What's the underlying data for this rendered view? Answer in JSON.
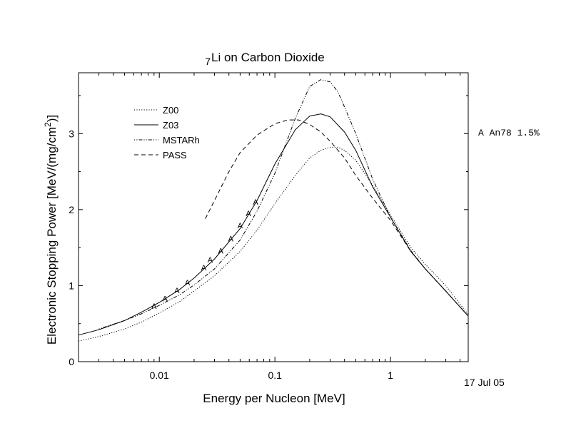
{
  "chart_data": {
    "type": "line",
    "title_sup": "7",
    "title": "Li on Carbon Dioxide",
    "xlabel": "Energy per Nucleon [MeV]",
    "ylabel_main": "Electronic Stopping Power [MeV/(mg/cm",
    "ylabel_sup": "2",
    "ylabel_end": ")]",
    "x_scale": "log",
    "xlim": [
      0.002,
      4.7
    ],
    "ylim": [
      0,
      3.8
    ],
    "x_ticks": [
      {
        "value": 0.01,
        "label": "0.01"
      },
      {
        "value": 0.1,
        "label": "0.1"
      },
      {
        "value": 1,
        "label": "1"
      }
    ],
    "y_ticks": [
      {
        "value": 0,
        "label": "0"
      },
      {
        "value": 1,
        "label": "1"
      },
      {
        "value": 2,
        "label": "2"
      },
      {
        "value": 3,
        "label": "3"
      }
    ],
    "legend_position": "top-left",
    "series": [
      {
        "name": "Z00",
        "style": "dotted",
        "x": [
          0.002,
          0.003,
          0.005,
          0.007,
          0.01,
          0.015,
          0.02,
          0.03,
          0.05,
          0.07,
          0.1,
          0.15,
          0.2,
          0.25,
          0.3,
          0.35,
          0.4,
          0.5,
          0.7,
          1.0,
          1.5,
          2.0,
          3.0,
          4.7
        ],
        "y": [
          0.27,
          0.33,
          0.43,
          0.52,
          0.64,
          0.79,
          0.93,
          1.13,
          1.45,
          1.73,
          2.08,
          2.45,
          2.68,
          2.78,
          2.82,
          2.82,
          2.78,
          2.65,
          2.32,
          1.93,
          1.5,
          1.28,
          1.0,
          0.62
        ]
      },
      {
        "name": "Z03",
        "style": "solid",
        "x": [
          0.002,
          0.003,
          0.005,
          0.007,
          0.01,
          0.015,
          0.02,
          0.03,
          0.05,
          0.07,
          0.1,
          0.15,
          0.2,
          0.25,
          0.3,
          0.4,
          0.5,
          0.7,
          1.0,
          1.5,
          2.0,
          3.0,
          4.7
        ],
        "y": [
          0.35,
          0.42,
          0.54,
          0.65,
          0.78,
          0.95,
          1.1,
          1.35,
          1.75,
          2.12,
          2.6,
          3.05,
          3.23,
          3.26,
          3.22,
          3.02,
          2.78,
          2.3,
          1.9,
          1.45,
          1.22,
          0.93,
          0.6
        ]
      },
      {
        "name": "MSTARh",
        "style": "dash-dot",
        "x": [
          0.003,
          0.005,
          0.007,
          0.01,
          0.015,
          0.02,
          0.03,
          0.05,
          0.07,
          0.1,
          0.15,
          0.2,
          0.25,
          0.3,
          0.35,
          0.4,
          0.5,
          0.7,
          1.0,
          1.5,
          2.0,
          3.0,
          4.7
        ],
        "y": [
          0.43,
          0.54,
          0.63,
          0.74,
          0.88,
          1.01,
          1.22,
          1.6,
          1.98,
          2.48,
          3.2,
          3.62,
          3.71,
          3.68,
          3.55,
          3.35,
          3.0,
          2.4,
          1.9,
          1.46,
          1.22,
          0.93,
          0.6
        ]
      },
      {
        "name": "PASS",
        "style": "dashed",
        "x": [
          0.025,
          0.03,
          0.04,
          0.05,
          0.07,
          0.1,
          0.13,
          0.16,
          0.2,
          0.25,
          0.3,
          0.4,
          0.5,
          0.7,
          1.0,
          1.5,
          2.0,
          3.0,
          4.7
        ],
        "y": [
          1.88,
          2.12,
          2.5,
          2.75,
          2.98,
          3.13,
          3.18,
          3.18,
          3.12,
          3.02,
          2.9,
          2.68,
          2.45,
          2.15,
          1.86,
          1.45,
          1.22,
          0.93,
          0.6
        ]
      }
    ],
    "data_points": {
      "marker": "A",
      "x": [
        0.009,
        0.0112,
        0.0142,
        0.0175,
        0.0242,
        0.0275,
        0.034,
        0.0415,
        0.05,
        0.059,
        0.068
      ],
      "y": [
        0.73,
        0.83,
        0.94,
        1.04,
        1.24,
        1.34,
        1.46,
        1.62,
        1.79,
        1.95,
        2.1
      ]
    },
    "side_annotation": "A An78 1.5%",
    "date_stamp": "17 Jul 05"
  }
}
